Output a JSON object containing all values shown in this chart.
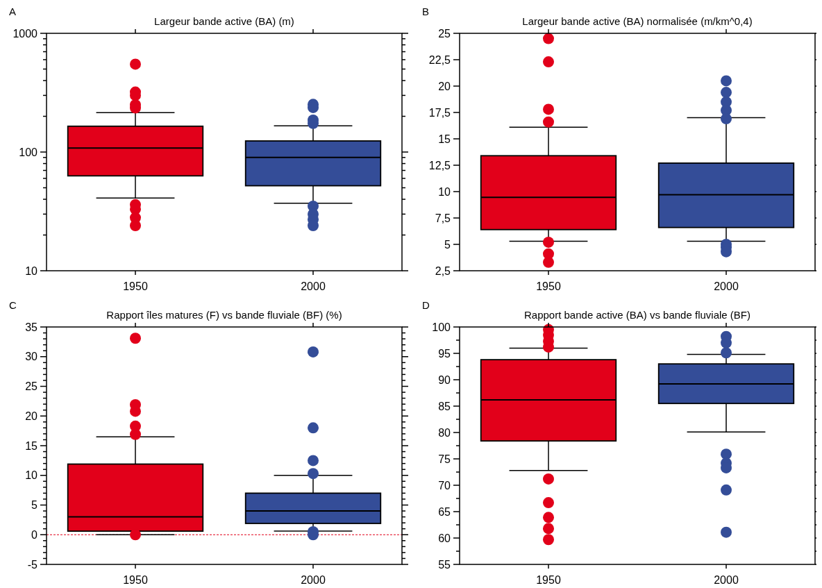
{
  "chart_data": [
    {
      "type": "box",
      "title": "Largeur bande active (BA) (m)",
      "annotations": [
        "A"
      ],
      "categories": [
        "1950",
        "2000"
      ],
      "colors": [
        "#e2001a",
        "#344d98"
      ],
      "log": true,
      "ylim": [
        10,
        1000
      ],
      "yticks": [
        10,
        {
          "value": 20,
          "label": null
        },
        {
          "value": 30,
          "label": null
        },
        {
          "value": 40,
          "label": null
        },
        {
          "value": 50,
          "label": null
        },
        {
          "value": 60,
          "label": null
        },
        {
          "value": 70,
          "label": null
        },
        {
          "value": 80,
          "label": null
        },
        {
          "value": 90,
          "label": null
        },
        100,
        {
          "value": 200,
          "label": null
        },
        {
          "value": 300,
          "label": null
        },
        {
          "value": 400,
          "label": null
        },
        {
          "value": 500,
          "label": null
        },
        {
          "value": 600,
          "label": null
        },
        {
          "value": 700,
          "label": null
        },
        {
          "value": 800,
          "label": null
        },
        {
          "value": 900,
          "label": null
        },
        1000
      ],
      "boxes": [
        {
          "low": 41,
          "q1": 63,
          "median": 108,
          "q3": 165,
          "high": 215,
          "outliers": [
            550,
            320,
            300,
            250,
            235,
            36,
            33,
            28,
            24
          ]
        },
        {
          "low": 37,
          "q1": 52,
          "median": 90,
          "q3": 124,
          "high": 166,
          "outliers": [
            252,
            237,
            186,
            174,
            35,
            30,
            27,
            24
          ]
        }
      ]
    },
    {
      "type": "box",
      "title": "Largeur bande active (BA) normalisée (m/km^0,4)",
      "annotations": [
        "B"
      ],
      "categories": [
        "1950",
        "2000"
      ],
      "colors": [
        "#e2001a",
        "#344d98"
      ],
      "ylim": [
        2.5,
        25
      ],
      "yticks": [
        {
          "value": 2.5,
          "label": "2,5"
        },
        5,
        {
          "value": 7.5,
          "label": "7,5"
        },
        10,
        {
          "value": 12.5,
          "label": "12,5"
        },
        15,
        {
          "value": 17.5,
          "label": "17,5"
        },
        20,
        {
          "value": 22.5,
          "label": "22,5"
        },
        25
      ],
      "boxes": [
        {
          "low": 5.3,
          "q1": 6.4,
          "median": 9.45,
          "q3": 13.4,
          "high": 16.1,
          "outliers": [
            24.5,
            22.3,
            17.8,
            16.6,
            5.2,
            4.1,
            3.3
          ]
        },
        {
          "low": 5.3,
          "q1": 6.6,
          "median": 9.7,
          "q3": 12.7,
          "high": 17,
          "outliers": [
            20.5,
            19.4,
            18.5,
            17.7,
            16.9,
            5,
            4.7,
            4.3
          ]
        }
      ]
    },
    {
      "type": "box",
      "title": "Rapport îles matures (F) vs bande fluviale (BF) (%)",
      "annotations": [
        "C"
      ],
      "categories": [
        "1950",
        "2000"
      ],
      "colors": [
        "#e2001a",
        "#344d98"
      ],
      "ylim": [
        -5,
        35
      ],
      "yticks": [
        -5,
        {
          "value": -4,
          "label": null
        },
        {
          "value": -3,
          "label": null
        },
        {
          "value": -2,
          "label": null
        },
        {
          "value": -1,
          "label": null
        },
        0,
        {
          "value": 1,
          "label": null
        },
        {
          "value": 2,
          "label": null
        },
        {
          "value": 3,
          "label": null
        },
        {
          "value": 4,
          "label": null
        },
        5,
        {
          "value": 6,
          "label": null
        },
        {
          "value": 7,
          "label": null
        },
        {
          "value": 8,
          "label": null
        },
        {
          "value": 9,
          "label": null
        },
        10,
        {
          "value": 11,
          "label": null
        },
        {
          "value": 12,
          "label": null
        },
        {
          "value": 13,
          "label": null
        },
        {
          "value": 14,
          "label": null
        },
        15,
        {
          "value": 16,
          "label": null
        },
        {
          "value": 17,
          "label": null
        },
        {
          "value": 18,
          "label": null
        },
        {
          "value": 19,
          "label": null
        },
        20,
        {
          "value": 21,
          "label": null
        },
        {
          "value": 22,
          "label": null
        },
        {
          "value": 23,
          "label": null
        },
        {
          "value": 24,
          "label": null
        },
        25,
        {
          "value": 26,
          "label": null
        },
        {
          "value": 27,
          "label": null
        },
        {
          "value": 28,
          "label": null
        },
        {
          "value": 29,
          "label": null
        },
        30,
        {
          "value": 31,
          "label": null
        },
        {
          "value": 32,
          "label": null
        },
        {
          "value": 33,
          "label": null
        },
        {
          "value": 34,
          "label": null
        },
        35
      ],
      "ref_lines": [
        {
          "axis": "y",
          "value": 0,
          "color": "#e2001a",
          "line_style": "dashed"
        }
      ],
      "boxes": [
        {
          "low": 0,
          "q1": 0.6,
          "median": 3,
          "q3": 11.9,
          "high": 16.5,
          "outliers": [
            33.1,
            21.9,
            20.8,
            18.3,
            16.9,
            0
          ]
        },
        {
          "low": 0.6,
          "q1": 1.9,
          "median": 4,
          "q3": 7,
          "high": 10,
          "outliers": [
            30.8,
            18,
            12.5,
            10.3,
            0.5,
            0
          ]
        }
      ]
    },
    {
      "type": "box",
      "title": "Rapport bande active (BA) vs bande fluviale (BF)",
      "annotations": [
        "D"
      ],
      "categories": [
        "1950",
        "2000"
      ],
      "colors": [
        "#e2001a",
        "#344d98"
      ],
      "ylim": [
        55,
        100
      ],
      "yticks": [
        55,
        {
          "value": 57.5,
          "label": null
        },
        60,
        {
          "value": 62.5,
          "label": null
        },
        65,
        {
          "value": 67.5,
          "label": null
        },
        70,
        {
          "value": 72.5,
          "label": null
        },
        75,
        {
          "value": 77.5,
          "label": null
        },
        80,
        {
          "value": 82.5,
          "label": null
        },
        85,
        {
          "value": 87.5,
          "label": null
        },
        90,
        {
          "value": 92.5,
          "label": null
        },
        95,
        {
          "value": 97.5,
          "label": null
        },
        100
      ],
      "boxes": [
        {
          "low": 72.8,
          "q1": 78.4,
          "median": 86.2,
          "q3": 93.8,
          "high": 96,
          "outliers": [
            99.5,
            98.5,
            97.3,
            96.2,
            71.2,
            66.7,
            63.9,
            61.8,
            59.7
          ]
        },
        {
          "low": 80.1,
          "q1": 85.5,
          "median": 89.2,
          "q3": 93,
          "high": 94.8,
          "outliers": [
            98.2,
            97,
            95.1,
            75.9,
            74.2,
            73.3,
            69.1,
            61.1
          ]
        }
      ]
    }
  ]
}
